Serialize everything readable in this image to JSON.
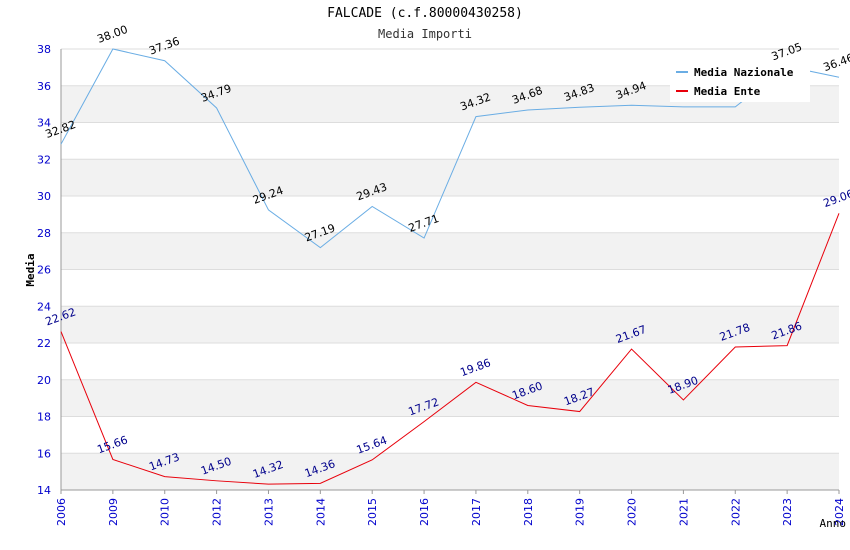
{
  "chart_data": {
    "type": "line",
    "title": "FALCADE (c.f.80000430258)",
    "subtitle": "Media Importi",
    "xlabel": "Anno",
    "ylabel": "Media",
    "categories": [
      "2006",
      "2009",
      "2010",
      "2012",
      "2013",
      "2014",
      "2015",
      "2016",
      "2017",
      "2018",
      "2019",
      "2020",
      "2021",
      "2022",
      "2023",
      "2024"
    ],
    "ylim": [
      14,
      38
    ],
    "yticks": [
      14,
      16,
      18,
      20,
      22,
      24,
      26,
      28,
      30,
      32,
      34,
      36,
      38
    ],
    "grid": true,
    "legend_position": "top-right",
    "series": [
      {
        "name": "Media Nazionale",
        "color": "#6aade4",
        "label_color": "#000000",
        "values": [
          32.82,
          38.0,
          37.36,
          34.79,
          29.24,
          27.19,
          29.43,
          27.71,
          34.32,
          34.68,
          34.83,
          34.94,
          34.85,
          34.85,
          37.05,
          36.46
        ],
        "labels": [
          "32.82",
          "38.00",
          "37.36",
          "34.79",
          "29.24",
          "27.19",
          "29.43",
          "27.71",
          "34.32",
          "34.68",
          "34.83",
          "34.94",
          "",
          "",
          "37.05",
          "36.46"
        ]
      },
      {
        "name": "Media Ente",
        "color": "#e8000b",
        "label_color": "#00008b",
        "values": [
          22.62,
          15.66,
          14.73,
          14.5,
          14.32,
          14.36,
          15.64,
          17.72,
          19.86,
          18.6,
          18.27,
          21.67,
          18.9,
          21.78,
          21.86,
          29.06
        ],
        "labels": [
          "22.62",
          "15.66",
          "14.73",
          "14.50",
          "14.32",
          "14.36",
          "15.64",
          "17.72",
          "19.86",
          "18.60",
          "18.27",
          "21.67",
          "18.90",
          "21.78",
          "21.86",
          "29.06"
        ]
      }
    ],
    "colors": {
      "tick_label": "#0000cc",
      "band": "#f2f2f2",
      "grid": "#dddddd",
      "axis": "#999999"
    }
  }
}
